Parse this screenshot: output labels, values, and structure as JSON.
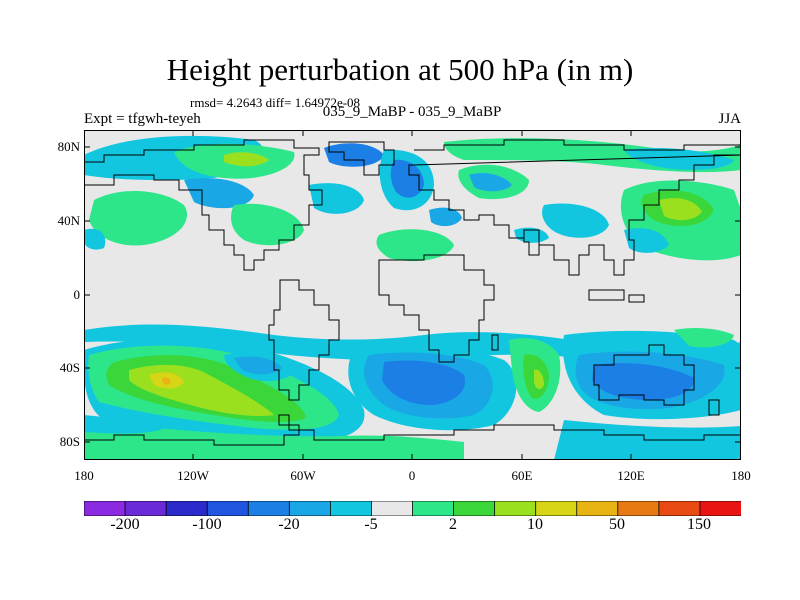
{
  "title": "Height perturbation at 500 hPa (in m)",
  "stats": "rmsd= 4.2643 diff= 1.64972e-08",
  "left_label": "Expt = tfgwh-teyeh",
  "center_label": "035_9_MaBP - 035_9_MaBP",
  "right_label": "JJA",
  "lat_labels": [
    "80N",
    "40N",
    "0",
    "40S",
    "80S"
  ],
  "lon_labels": [
    "180",
    "120W",
    "60W",
    "0",
    "60E",
    "120E",
    "180"
  ],
  "colorbar": {
    "colors": [
      "#8a2be2",
      "#6a2ad6",
      "#2b2bcc",
      "#1f55e0",
      "#1c7fe6",
      "#19a7e6",
      "#12c6e0",
      "#e8e8e8",
      "#2ee68a",
      "#3ad63a",
      "#9be01e",
      "#d6d614",
      "#e8b414",
      "#e87a14",
      "#e84a14",
      "#e81414"
    ],
    "labels": [
      "-200",
      "-100",
      "-20",
      "-5",
      "2",
      "10",
      "50",
      "150"
    ]
  },
  "palette": {
    "background": "#e8e8e8",
    "cyan": "#12c6e0",
    "light_blue": "#19a7e6",
    "blue": "#1c7fe6",
    "teal": "#2ee68a",
    "green": "#3ad63a",
    "yellow_green": "#9be01e",
    "yellow": "#d6d614",
    "orange": "#e8b414"
  }
}
